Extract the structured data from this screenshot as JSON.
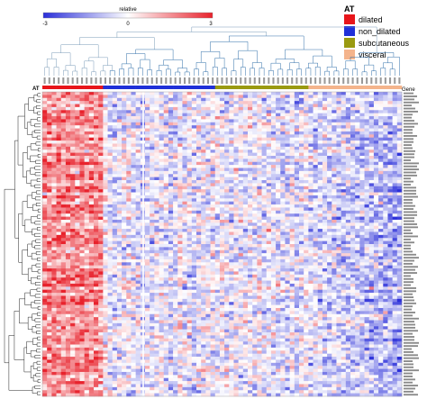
{
  "chart_data": {
    "type": "heatmap",
    "title": "",
    "colorbar": {
      "label": "relative",
      "min": -3,
      "mid": 0,
      "max": 3,
      "tick_labels": [
        "-3",
        "0",
        "3"
      ],
      "colors": {
        "low": "#2b2fd9",
        "mid": "#ffffff",
        "high": "#e8222c"
      }
    },
    "column_annotation": {
      "name": "AT",
      "legend_title": "AT",
      "legend_placement": "top-right",
      "categories": [
        {
          "label": "dilated",
          "color": "#e8151a",
          "count": 13
        },
        {
          "label": "non_dilated",
          "color": "#2030d8",
          "count": 24
        },
        {
          "label": "subcutaneous",
          "color": "#9a9a10",
          "count": 20
        },
        {
          "label": "visceral",
          "color": "#f4b48c",
          "count": 20
        }
      ]
    },
    "row_header": "Gene",
    "n_rows": 100,
    "n_cols": 77,
    "row_clusters": [
      {
        "rows": 100,
        "dilated_level": 1.6,
        "other_level": -0.3,
        "visceral_level": -1.1
      }
    ],
    "dendrograms": {
      "rows": true,
      "columns": true
    },
    "grid": false
  }
}
